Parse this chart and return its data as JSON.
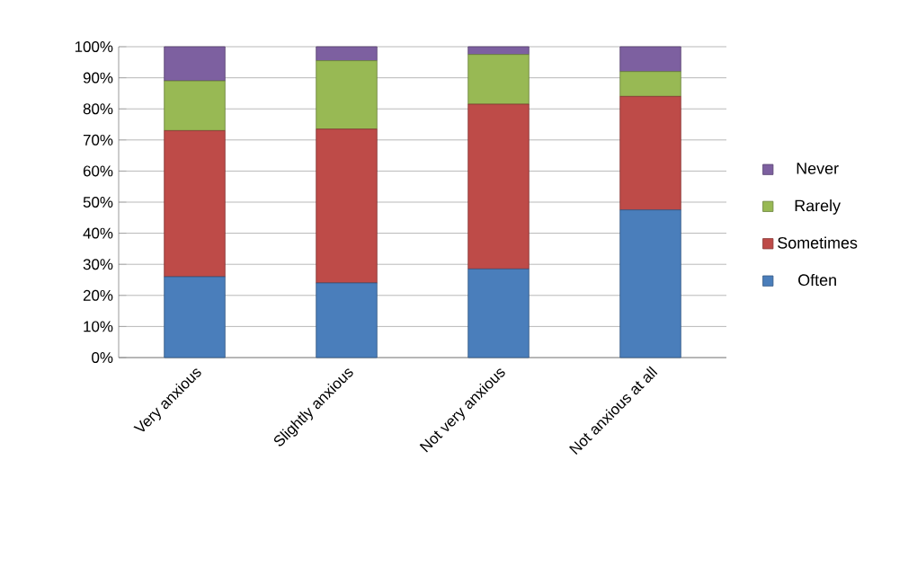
{
  "chart_data": {
    "type": "bar",
    "stacked": true,
    "categories": [
      "Very anxious",
      "Slightly anxious",
      "Not very anxious",
      "Not anxious at all"
    ],
    "series": [
      {
        "name": "Often",
        "color": "#4a7ebb",
        "values": [
          26,
          24,
          28.5,
          47.5
        ]
      },
      {
        "name": "Sometimes",
        "color": "#be4b48",
        "values": [
          47,
          49.5,
          53,
          36.5
        ]
      },
      {
        "name": "Rarely",
        "color": "#98b954",
        "values": [
          16,
          22,
          16,
          8
        ]
      },
      {
        "name": "Never",
        "color": "#7d60a0",
        "values": [
          11,
          4.5,
          2.5,
          8
        ]
      }
    ],
    "ylim": [
      0,
      100
    ],
    "yticks": [
      {
        "value": 0,
        "label": "0%"
      },
      {
        "value": 10,
        "label": "10%"
      },
      {
        "value": 20,
        "label": "20%"
      },
      {
        "value": 30,
        "label": "30%"
      },
      {
        "value": 40,
        "label": "40%"
      },
      {
        "value": 50,
        "label": "50%"
      },
      {
        "value": 60,
        "label": "60%"
      },
      {
        "value": 70,
        "label": "70%"
      },
      {
        "value": 80,
        "label": "80%"
      },
      {
        "value": 90,
        "label": "90%"
      },
      {
        "value": 100,
        "label": "100%"
      }
    ],
    "grid": "y",
    "legend": "right"
  }
}
